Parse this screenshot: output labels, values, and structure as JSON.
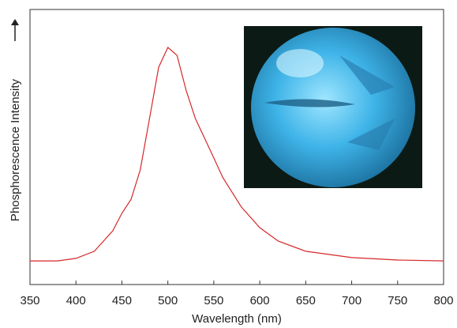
{
  "chart_data": {
    "type": "line",
    "x_label": "Wavelength (nm)",
    "y_label": "Phosphorescence Intensity",
    "x": [
      350,
      380,
      400,
      420,
      440,
      450,
      460,
      470,
      480,
      490,
      500,
      510,
      520,
      530,
      540,
      550,
      560,
      580,
      600,
      620,
      650,
      700,
      750,
      800
    ],
    "values": [
      0.086,
      0.086,
      0.095,
      0.121,
      0.195,
      0.259,
      0.31,
      0.417,
      0.603,
      0.79,
      0.862,
      0.833,
      0.704,
      0.603,
      0.532,
      0.46,
      0.388,
      0.282,
      0.207,
      0.158,
      0.121,
      0.098,
      0.089,
      0.086
    ],
    "color": "#d62728",
    "xlim": [
      350,
      800
    ],
    "xticks": [
      350,
      400,
      450,
      500,
      550,
      600,
      650,
      700,
      750,
      800
    ],
    "ylim": [
      0,
      1
    ]
  }
}
